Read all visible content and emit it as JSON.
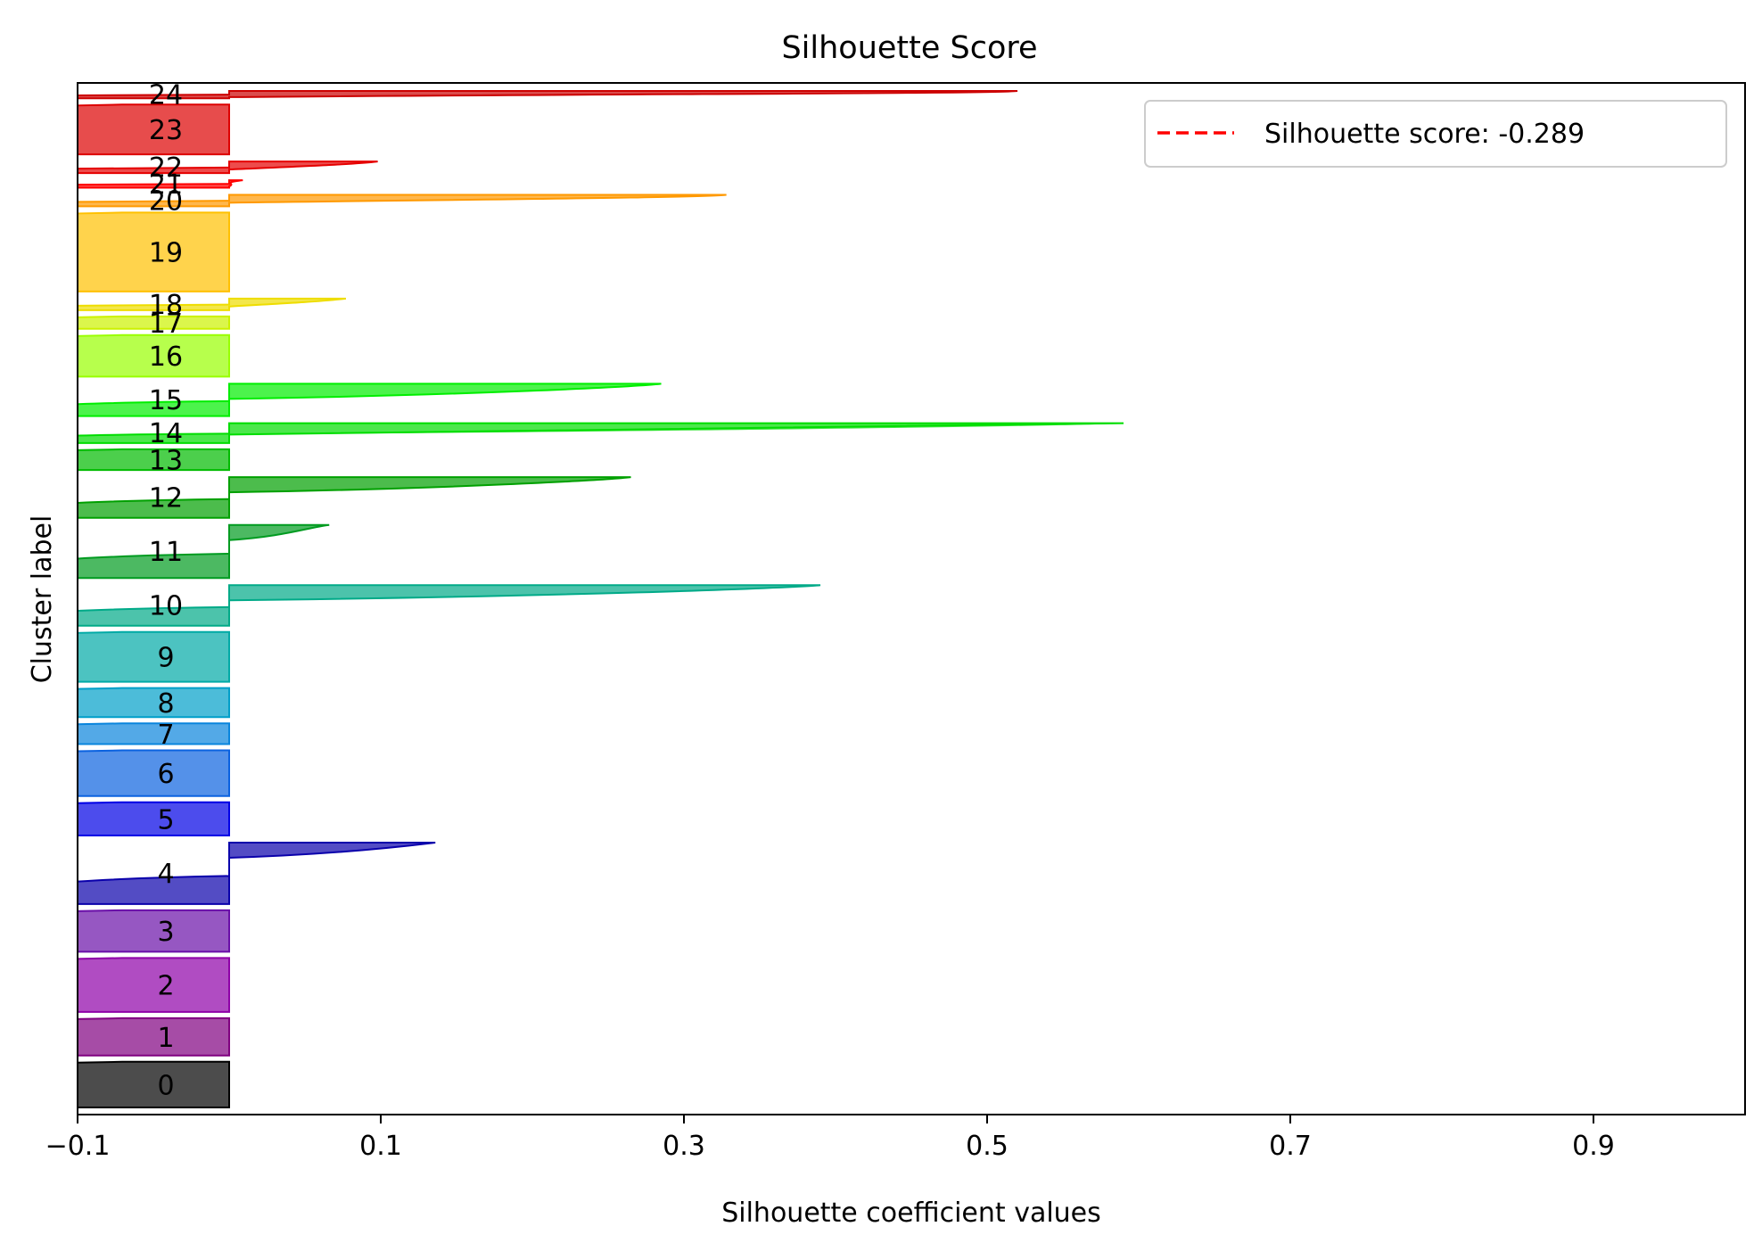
{
  "chart_data": {
    "type": "silhouette",
    "title": "Silhouette Score",
    "xlabel": "Silhouette coefficient values",
    "ylabel": "Cluster label",
    "xlim": [
      -0.1,
      1.0
    ],
    "xticks": [
      -0.1,
      0.1,
      0.3,
      0.5,
      0.7,
      0.9
    ],
    "xtick_labels": [
      "−0.1",
      "0.1",
      "0.3",
      "0.5",
      "0.7",
      "0.9"
    ],
    "grid": false,
    "legend_position": "top-right",
    "silhouette_score": -0.289,
    "score_line_color": "#ff0000",
    "legend": {
      "label": "Silhouette score: -0.289"
    },
    "clusters": [
      {
        "label": "0",
        "color": "#000000",
        "size": 11,
        "min": -0.1,
        "max": 0.0
      },
      {
        "label": "1",
        "color": "#800080",
        "size": 9,
        "min": -0.1,
        "max": 0.0
      },
      {
        "label": "2",
        "color": "#8f00a8",
        "size": 13,
        "min": -0.1,
        "max": 0.0
      },
      {
        "label": "3",
        "color": "#6a0fa8",
        "size": 10,
        "min": -0.1,
        "max": 0.0
      },
      {
        "label": "4",
        "color": "#0a00ab",
        "size": 15,
        "min": -0.1,
        "max": 0.136
      },
      {
        "label": "5",
        "color": "#0000e6",
        "size": 8,
        "min": -0.1,
        "max": 0.0
      },
      {
        "label": "6",
        "color": "#0b62e0",
        "size": 11,
        "min": -0.1,
        "max": 0.0
      },
      {
        "label": "7",
        "color": "#0a85dd",
        "size": 5,
        "min": -0.1,
        "max": 0.0
      },
      {
        "label": "8",
        "color": "#009fc9",
        "size": 7,
        "min": -0.1,
        "max": 0.0
      },
      {
        "label": "9",
        "color": "#00aaa6",
        "size": 12,
        "min": -0.1,
        "max": 0.0
      },
      {
        "label": "10",
        "color": "#00aa88",
        "size": 10,
        "min": -0.1,
        "max": 0.39
      },
      {
        "label": "11",
        "color": "#009b20",
        "size": 13,
        "min": -0.1,
        "max": 0.066
      },
      {
        "label": "12",
        "color": "#00a000",
        "size": 10,
        "min": -0.1,
        "max": 0.265
      },
      {
        "label": "13",
        "color": "#00bb00",
        "size": 5,
        "min": -0.1,
        "max": 0.0
      },
      {
        "label": "14",
        "color": "#00dd00",
        "size": 5,
        "min": -0.1,
        "max": 0.59
      },
      {
        "label": "15",
        "color": "#00ee00",
        "size": 8,
        "min": -0.1,
        "max": 0.285
      },
      {
        "label": "16",
        "color": "#99ff00",
        "size": 10,
        "min": -0.1,
        "max": 0.0
      },
      {
        "label": "17",
        "color": "#ccf200",
        "size": 3,
        "min": -0.1,
        "max": 0.0
      },
      {
        "label": "18",
        "color": "#eedd00",
        "size": 3,
        "min": -0.1,
        "max": 0.077
      },
      {
        "label": "19",
        "color": "#ffc000",
        "size": 19,
        "min": -0.1,
        "max": 0.0
      },
      {
        "label": "20",
        "color": "#ff9900",
        "size": 3,
        "min": -0.1,
        "max": 0.328
      },
      {
        "label": "21",
        "color": "#ff0000",
        "size": 2,
        "min": -0.1,
        "max": 0.009
      },
      {
        "label": "22",
        "color": "#e50000",
        "size": 3,
        "min": -0.1,
        "max": 0.098
      },
      {
        "label": "23",
        "color": "#dd0000",
        "size": 12,
        "min": -0.1,
        "max": 0.0
      },
      {
        "label": "24",
        "color": "#cc0000",
        "size": 2,
        "min": -0.1,
        "max": 0.52
      }
    ]
  }
}
